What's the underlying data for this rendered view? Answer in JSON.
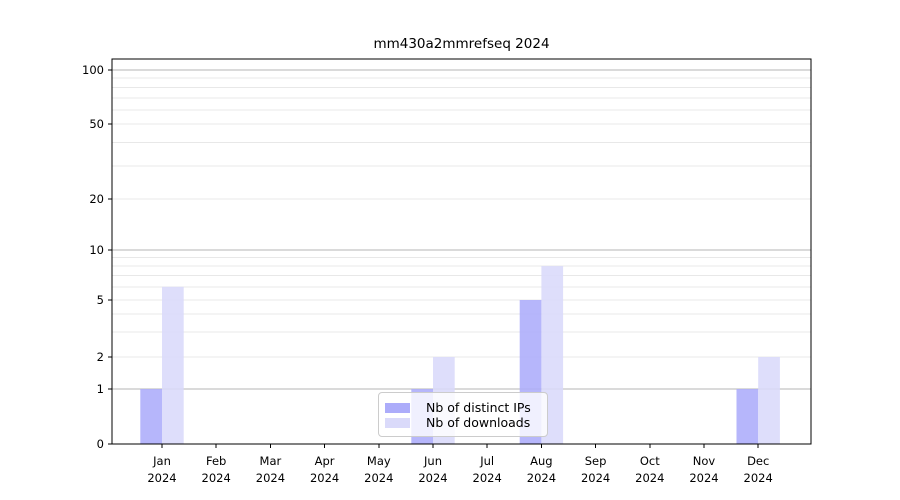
{
  "chart_data": {
    "type": "bar",
    "title": "mm430a2mmrefseq 2024",
    "categories": [
      "Jan",
      "Feb",
      "Mar",
      "Apr",
      "May",
      "Jun",
      "Jul",
      "Aug",
      "Sep",
      "Oct",
      "Nov",
      "Dec"
    ],
    "category_year": "2024",
    "series": [
      {
        "name": "Nb of distinct IPs",
        "color": "#acacfa",
        "values": [
          1,
          0,
          0,
          0,
          0,
          1,
          0,
          5,
          0,
          0,
          0,
          1
        ]
      },
      {
        "name": "Nb of downloads",
        "color": "#dadafa",
        "values": [
          6,
          0,
          0,
          0,
          0,
          2,
          0,
          8,
          0,
          0,
          0,
          2
        ]
      }
    ],
    "yticks": [
      0,
      1,
      2,
      5,
      10,
      20,
      50,
      100
    ],
    "ylim": [
      0,
      115
    ],
    "yscale": "log-like (0 at baseline)",
    "grid": "horizontal, major at 1/10/100, minor at 2-9 per decade",
    "legend_position": "bottom-center",
    "colors": {
      "axis": "#000000",
      "major_grid": "#b4b4b4",
      "minor_grid": "#e8e8e8",
      "background": "#ffffff"
    }
  }
}
